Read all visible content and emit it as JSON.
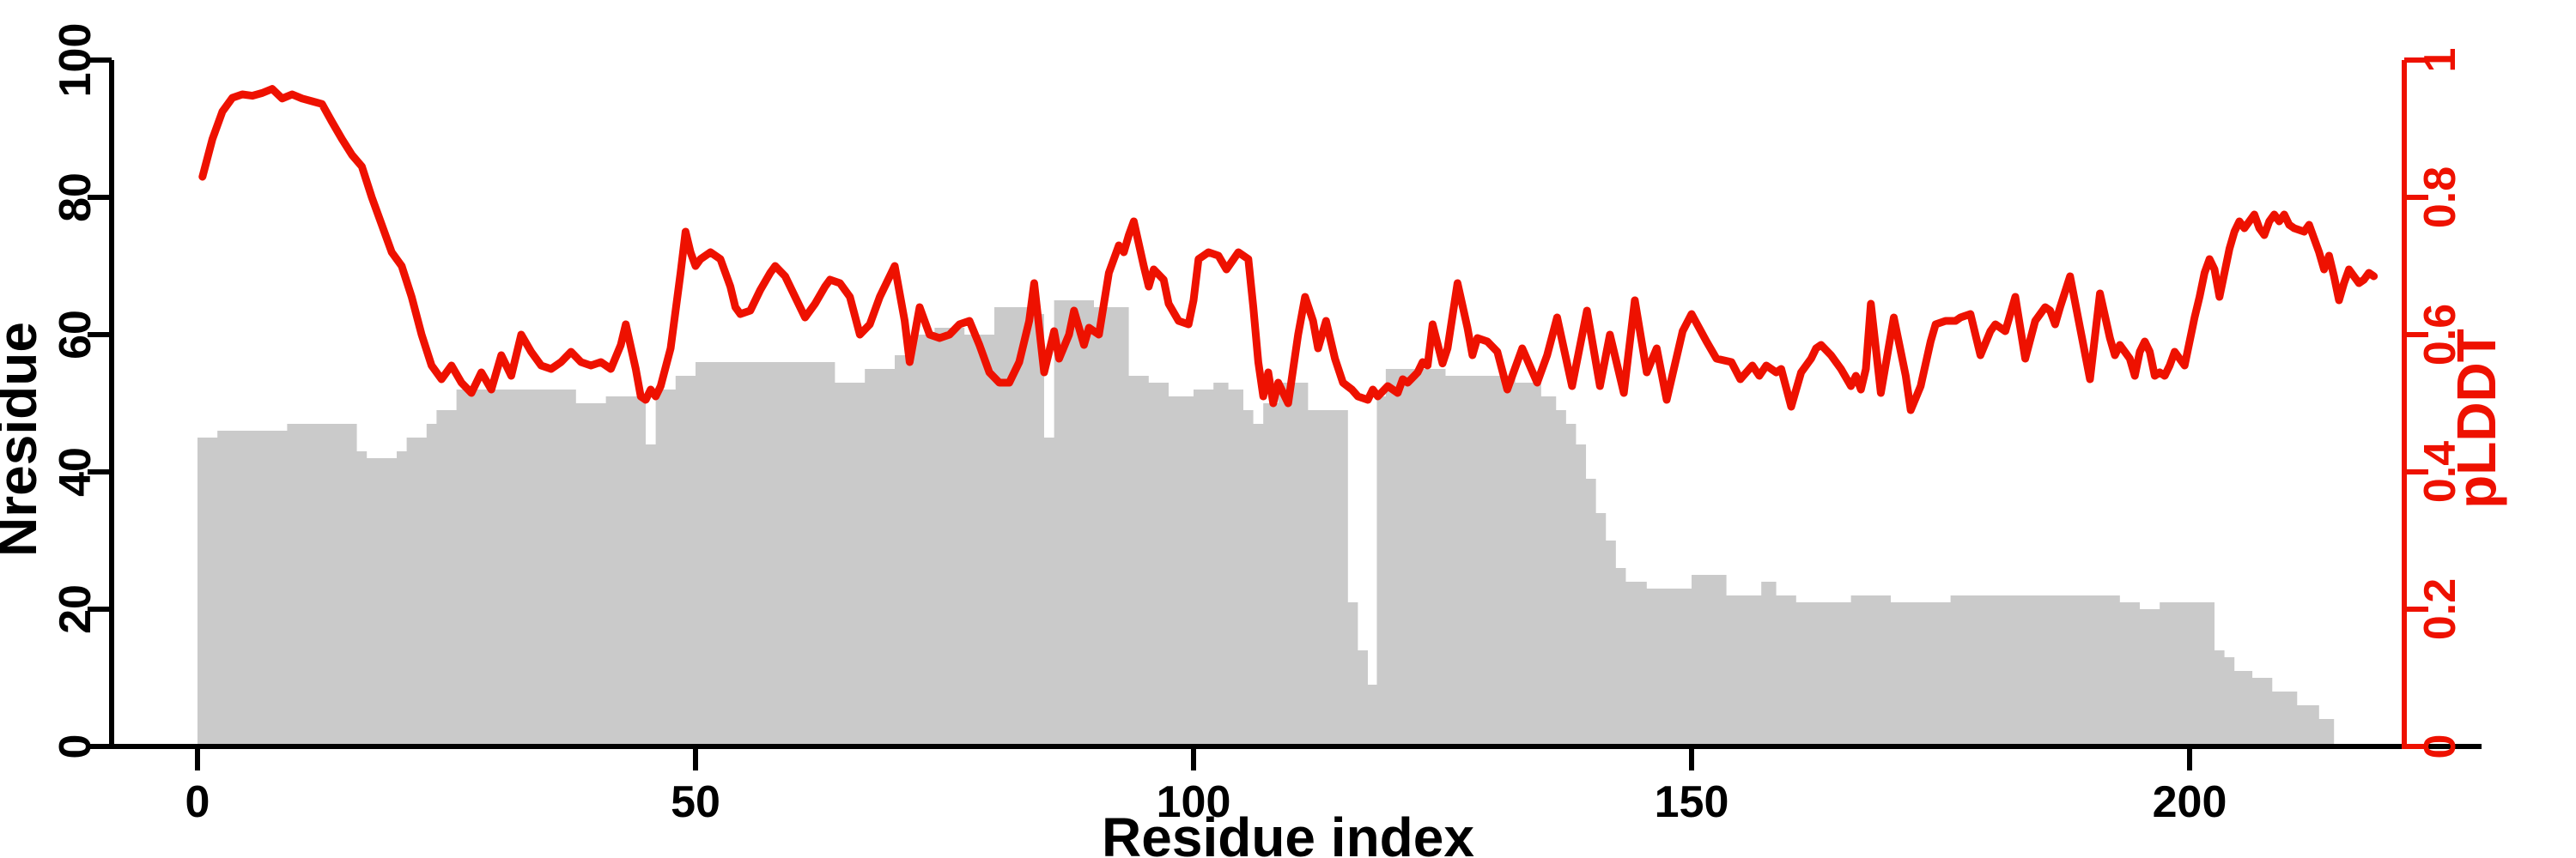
{
  "figure": {
    "background": "#ffffff"
  },
  "chart_data": {
    "type": "bar+line",
    "title": "",
    "xlabel": "Residue index",
    "ylabel_left": "Nresidue",
    "ylabel_right": "pLDDT",
    "x_ticks": [
      0,
      50,
      100,
      150,
      200
    ],
    "y_left_ticks": [
      0,
      20,
      40,
      60,
      80,
      100
    ],
    "y_right_ticks": [
      "0",
      "0.2",
      "0.4",
      "0.6",
      "0.8",
      "1"
    ],
    "xlim": [
      -8.6,
      229.5
    ],
    "ylim_left": [
      0,
      100
    ],
    "ylim_right": [
      0,
      1
    ],
    "grid": false,
    "legend": "none",
    "bar_color": "#cacaca",
    "line_color": "#ee1100",
    "axis_color": "#000000",
    "right_axis_color": "#ee1100",
    "bars_series_name": "Nresidue",
    "line_series_name": "pLDDT",
    "bar_segments": [
      [
        0,
        2,
        45
      ],
      [
        2,
        9,
        46
      ],
      [
        9,
        16,
        47
      ],
      [
        16,
        17,
        43
      ],
      [
        17,
        20,
        42
      ],
      [
        20,
        21,
        43
      ],
      [
        21,
        23,
        45
      ],
      [
        23,
        24,
        47
      ],
      [
        24,
        26,
        49
      ],
      [
        26,
        38,
        52
      ],
      [
        38,
        41,
        50
      ],
      [
        41,
        45,
        51
      ],
      [
        45,
        46,
        44
      ],
      [
        46,
        48,
        52
      ],
      [
        48,
        50,
        54
      ],
      [
        50,
        60,
        56
      ],
      [
        60,
        64,
        56
      ],
      [
        64,
        67,
        53
      ],
      [
        67,
        70,
        55
      ],
      [
        70,
        72,
        57
      ],
      [
        72,
        74,
        60
      ],
      [
        74,
        77,
        61
      ],
      [
        77,
        80,
        60
      ],
      [
        80,
        84,
        64
      ],
      [
        84,
        85,
        63
      ],
      [
        85,
        86,
        45
      ],
      [
        86,
        90,
        65
      ],
      [
        90,
        93.5,
        64
      ],
      [
        93.5,
        95.5,
        54
      ],
      [
        95.5,
        97.5,
        53
      ],
      [
        97.5,
        100,
        51
      ],
      [
        100,
        102,
        52
      ],
      [
        102,
        103.5,
        53
      ],
      [
        103.5,
        105,
        52
      ],
      [
        105,
        106,
        49
      ],
      [
        106,
        107,
        47
      ],
      [
        107,
        108.5,
        50
      ],
      [
        108.5,
        111.5,
        53
      ],
      [
        111.5,
        115.5,
        49
      ],
      [
        115.5,
        116.5,
        21
      ],
      [
        116.5,
        117.5,
        14
      ],
      [
        117.5,
        118.4,
        9
      ],
      [
        118.4,
        119.3,
        51
      ],
      [
        119.3,
        125.3,
        55
      ],
      [
        125.3,
        132.3,
        54
      ],
      [
        132.3,
        134.9,
        53
      ],
      [
        134.9,
        136.4,
        51
      ],
      [
        136.4,
        137.4,
        49
      ],
      [
        137.4,
        138.4,
        47
      ],
      [
        138.4,
        139.4,
        44
      ],
      [
        139.4,
        140.4,
        39
      ],
      [
        140.4,
        141.4,
        34
      ],
      [
        141.4,
        142.4,
        30
      ],
      [
        142.4,
        143.4,
        26
      ],
      [
        143.4,
        145.5,
        24
      ],
      [
        145.5,
        150,
        23
      ],
      [
        150,
        153.5,
        25
      ],
      [
        153.5,
        157,
        22
      ],
      [
        157,
        158.5,
        24
      ],
      [
        158.5,
        160.5,
        22
      ],
      [
        160.5,
        166,
        21
      ],
      [
        166,
        170,
        22
      ],
      [
        170,
        176,
        21
      ],
      [
        176,
        193,
        22
      ],
      [
        193,
        195,
        21
      ],
      [
        195,
        197,
        20
      ],
      [
        197,
        202.5,
        21
      ],
      [
        202.5,
        203.5,
        14
      ],
      [
        203.5,
        204.5,
        13
      ],
      [
        204.5,
        206.3,
        11
      ],
      [
        206.3,
        208.3,
        10
      ],
      [
        208.3,
        210.8,
        8
      ],
      [
        210.8,
        213,
        6
      ],
      [
        213,
        214.5,
        4
      ]
    ],
    "line_points": [
      [
        0,
        0.83
      ],
      [
        1,
        0.885
      ],
      [
        2,
        0.925
      ],
      [
        3,
        0.945
      ],
      [
        4,
        0.95
      ],
      [
        5,
        0.948
      ],
      [
        6,
        0.952
      ],
      [
        7,
        0.958
      ],
      [
        8,
        0.944
      ],
      [
        9,
        0.95
      ],
      [
        10,
        0.944
      ],
      [
        11,
        0.94
      ],
      [
        12,
        0.936
      ],
      [
        13,
        0.91
      ],
      [
        14,
        0.885
      ],
      [
        15,
        0.862
      ],
      [
        16,
        0.845
      ],
      [
        17,
        0.8
      ],
      [
        18,
        0.76
      ],
      [
        19,
        0.72
      ],
      [
        20,
        0.7
      ],
      [
        21,
        0.655
      ],
      [
        22,
        0.6
      ],
      [
        23,
        0.555
      ],
      [
        24,
        0.535
      ],
      [
        25,
        0.555
      ],
      [
        26,
        0.53
      ],
      [
        27,
        0.515
      ],
      [
        28,
        0.545
      ],
      [
        29,
        0.52
      ],
      [
        30,
        0.57
      ],
      [
        31,
        0.54
      ],
      [
        32,
        0.6
      ],
      [
        33,
        0.575
      ],
      [
        34,
        0.555
      ],
      [
        35,
        0.55
      ],
      [
        36,
        0.56
      ],
      [
        37,
        0.575
      ],
      [
        38,
        0.56
      ],
      [
        39,
        0.555
      ],
      [
        40,
        0.56
      ],
      [
        41,
        0.55
      ],
      [
        42,
        0.585
      ],
      [
        42.5,
        0.615
      ],
      [
        43.5,
        0.55
      ],
      [
        44,
        0.51
      ],
      [
        44.5,
        0.505
      ],
      [
        45,
        0.52
      ],
      [
        45.5,
        0.51
      ],
      [
        46,
        0.525
      ],
      [
        47,
        0.58
      ],
      [
        48,
        0.69
      ],
      [
        48.5,
        0.75
      ],
      [
        49,
        0.72
      ],
      [
        49.5,
        0.7
      ],
      [
        50,
        0.71
      ],
      [
        51,
        0.72
      ],
      [
        52,
        0.71
      ],
      [
        53,
        0.67
      ],
      [
        53.5,
        0.64
      ],
      [
        54,
        0.63
      ],
      [
        55,
        0.635
      ],
      [
        56,
        0.665
      ],
      [
        57,
        0.69
      ],
      [
        57.5,
        0.7
      ],
      [
        58.5,
        0.685
      ],
      [
        59.5,
        0.655
      ],
      [
        60.5,
        0.625
      ],
      [
        61.5,
        0.645
      ],
      [
        62.5,
        0.67
      ],
      [
        63,
        0.68
      ],
      [
        64,
        0.675
      ],
      [
        65,
        0.655
      ],
      [
        66,
        0.6
      ],
      [
        67,
        0.615
      ],
      [
        68,
        0.655
      ],
      [
        69,
        0.685
      ],
      [
        69.5,
        0.7
      ],
      [
        70.5,
        0.62
      ],
      [
        71,
        0.56
      ],
      [
        72,
        0.64
      ],
      [
        73,
        0.6
      ],
      [
        74,
        0.595
      ],
      [
        75,
        0.6
      ],
      [
        76,
        0.615
      ],
      [
        77,
        0.62
      ],
      [
        78,
        0.585
      ],
      [
        79,
        0.545
      ],
      [
        80,
        0.53
      ],
      [
        81,
        0.53
      ],
      [
        82,
        0.56
      ],
      [
        83,
        0.62
      ],
      [
        83.5,
        0.675
      ],
      [
        84.5,
        0.545
      ],
      [
        85.5,
        0.605
      ],
      [
        86,
        0.565
      ],
      [
        87,
        0.6
      ],
      [
        87.5,
        0.635
      ],
      [
        88.5,
        0.585
      ],
      [
        89,
        0.61
      ],
      [
        90,
        0.6
      ],
      [
        91,
        0.69
      ],
      [
        92,
        0.73
      ],
      [
        92.5,
        0.72
      ],
      [
        93,
        0.745
      ],
      [
        93.5,
        0.765
      ],
      [
        94.5,
        0.7
      ],
      [
        95,
        0.67
      ],
      [
        95.5,
        0.695
      ],
      [
        96.5,
        0.68
      ],
      [
        97,
        0.645
      ],
      [
        98,
        0.62
      ],
      [
        99,
        0.615
      ],
      [
        99.5,
        0.65
      ],
      [
        100,
        0.71
      ],
      [
        101,
        0.72
      ],
      [
        102,
        0.715
      ],
      [
        102.8,
        0.695
      ],
      [
        104,
        0.72
      ],
      [
        105,
        0.71
      ],
      [
        105.5,
        0.64
      ],
      [
        106,
        0.56
      ],
      [
        106.5,
        0.51
      ],
      [
        107,
        0.545
      ],
      [
        107.5,
        0.5
      ],
      [
        108,
        0.53
      ],
      [
        109,
        0.5
      ],
      [
        110,
        0.6
      ],
      [
        110.7,
        0.655
      ],
      [
        111.5,
        0.62
      ],
      [
        112,
        0.58
      ],
      [
        112.8,
        0.62
      ],
      [
        113.7,
        0.565
      ],
      [
        114.5,
        0.53
      ],
      [
        115.4,
        0.52
      ],
      [
        116,
        0.51
      ],
      [
        117,
        0.505
      ],
      [
        117.5,
        0.52
      ],
      [
        118,
        0.51
      ],
      [
        119,
        0.525
      ],
      [
        120,
        0.515
      ],
      [
        120.5,
        0.535
      ],
      [
        121,
        0.53
      ],
      [
        122,
        0.545
      ],
      [
        122.5,
        0.56
      ],
      [
        123,
        0.555
      ],
      [
        123.5,
        0.615
      ],
      [
        124.5,
        0.558
      ],
      [
        125,
        0.58
      ],
      [
        126,
        0.675
      ],
      [
        127,
        0.61
      ],
      [
        127.5,
        0.57
      ],
      [
        128,
        0.595
      ],
      [
        129,
        0.59
      ],
      [
        130,
        0.575
      ],
      [
        131,
        0.52
      ],
      [
        132.5,
        0.58
      ],
      [
        134,
        0.53
      ],
      [
        135,
        0.57
      ],
      [
        136,
        0.625
      ],
      [
        137.5,
        0.525
      ],
      [
        139,
        0.635
      ],
      [
        140.3,
        0.525
      ],
      [
        141.3,
        0.6
      ],
      [
        142.7,
        0.515
      ],
      [
        143.8,
        0.65
      ],
      [
        145,
        0.545
      ],
      [
        146,
        0.58
      ],
      [
        147,
        0.505
      ],
      [
        148.6,
        0.605
      ],
      [
        149.5,
        0.63
      ],
      [
        151,
        0.59
      ],
      [
        152,
        0.565
      ],
      [
        153.5,
        0.56
      ],
      [
        154.4,
        0.535
      ],
      [
        155.6,
        0.555
      ],
      [
        156.3,
        0.54
      ],
      [
        157,
        0.555
      ],
      [
        158,
        0.545
      ],
      [
        158.5,
        0.55
      ],
      [
        159.5,
        0.495
      ],
      [
        160.5,
        0.545
      ],
      [
        161.5,
        0.565
      ],
      [
        162,
        0.58
      ],
      [
        162.5,
        0.585
      ],
      [
        163.5,
        0.57
      ],
      [
        164.5,
        0.55
      ],
      [
        165.5,
        0.525
      ],
      [
        166,
        0.54
      ],
      [
        166.5,
        0.52
      ],
      [
        167,
        0.55
      ],
      [
        167.5,
        0.645
      ],
      [
        168.5,
        0.515
      ],
      [
        169.8,
        0.625
      ],
      [
        171,
        0.54
      ],
      [
        171.5,
        0.49
      ],
      [
        172.5,
        0.525
      ],
      [
        173.5,
        0.59
      ],
      [
        174,
        0.615
      ],
      [
        175,
        0.62
      ],
      [
        176,
        0.62
      ],
      [
        176.5,
        0.625
      ],
      [
        177.5,
        0.63
      ],
      [
        178.5,
        0.57
      ],
      [
        179.5,
        0.605
      ],
      [
        180,
        0.615
      ],
      [
        180.5,
        0.61
      ],
      [
        181,
        0.605
      ],
      [
        182,
        0.655
      ],
      [
        183,
        0.565
      ],
      [
        184,
        0.62
      ],
      [
        185,
        0.64
      ],
      [
        185.5,
        0.635
      ],
      [
        186,
        0.615
      ],
      [
        186.5,
        0.64
      ],
      [
        187.5,
        0.685
      ],
      [
        188.5,
        0.61
      ],
      [
        189.5,
        0.535
      ],
      [
        190.5,
        0.66
      ],
      [
        191.5,
        0.595
      ],
      [
        192,
        0.57
      ],
      [
        192.5,
        0.585
      ],
      [
        193.5,
        0.565
      ],
      [
        194,
        0.54
      ],
      [
        194.5,
        0.575
      ],
      [
        195,
        0.59
      ],
      [
        195.5,
        0.575
      ],
      [
        196,
        0.54
      ],
      [
        196.5,
        0.545
      ],
      [
        197,
        0.54
      ],
      [
        197.5,
        0.555
      ],
      [
        198,
        0.575
      ],
      [
        199,
        0.555
      ],
      [
        200,
        0.625
      ],
      [
        200.5,
        0.655
      ],
      [
        201,
        0.69
      ],
      [
        201.5,
        0.71
      ],
      [
        202,
        0.695
      ],
      [
        202.5,
        0.655
      ],
      [
        203.5,
        0.725
      ],
      [
        204,
        0.75
      ],
      [
        204.5,
        0.765
      ],
      [
        205,
        0.755
      ],
      [
        205.5,
        0.765
      ],
      [
        206,
        0.775
      ],
      [
        206.5,
        0.755
      ],
      [
        207,
        0.745
      ],
      [
        207.5,
        0.765
      ],
      [
        208,
        0.775
      ],
      [
        208.5,
        0.765
      ],
      [
        209,
        0.775
      ],
      [
        209.5,
        0.76
      ],
      [
        210,
        0.755
      ],
      [
        211,
        0.75
      ],
      [
        211.5,
        0.76
      ],
      [
        212,
        0.74
      ],
      [
        212.5,
        0.72
      ],
      [
        213,
        0.695
      ],
      [
        213.5,
        0.715
      ],
      [
        214,
        0.685
      ],
      [
        214.5,
        0.65
      ],
      [
        215,
        0.675
      ],
      [
        215.5,
        0.695
      ],
      [
        216,
        0.685
      ],
      [
        216.5,
        0.675
      ],
      [
        217,
        0.68
      ],
      [
        217.5,
        0.69
      ],
      [
        218,
        0.685
      ]
    ]
  }
}
